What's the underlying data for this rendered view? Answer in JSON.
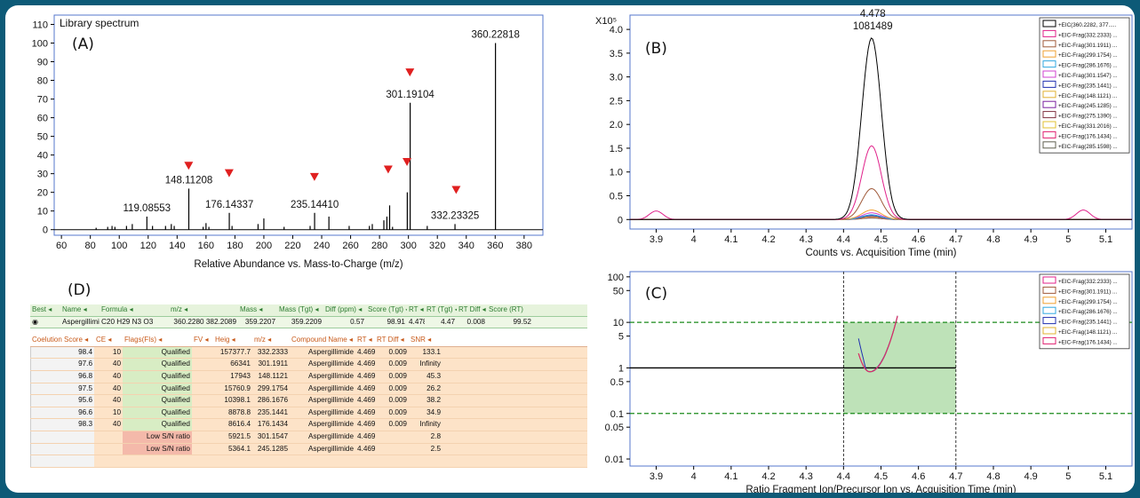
{
  "panels": {
    "A": "(A)",
    "B": "(B)",
    "C": "(C)",
    "D": "(D)"
  },
  "colors": {
    "frame": "#0d5a77",
    "marker": "#e02020",
    "green_box": "#a8d8a0"
  },
  "chart_data": [
    {
      "id": "A",
      "type": "bar",
      "title": "Library spectrum",
      "xlabel": "Relative Abundance vs. Mass-to-Charge (m/z)",
      "ylabel": "",
      "xlim": [
        55,
        393
      ],
      "ylim": [
        -3,
        115
      ],
      "xticks": [
        60,
        80,
        100,
        120,
        140,
        160,
        180,
        200,
        220,
        240,
        260,
        280,
        300,
        320,
        340,
        360,
        380
      ],
      "yticks": [
        0,
        10,
        20,
        30,
        40,
        50,
        60,
        70,
        80,
        90,
        100,
        110
      ],
      "x": [
        84,
        92,
        95,
        97,
        105,
        109,
        119.1,
        123,
        132,
        136,
        138,
        148.1,
        158,
        160,
        162,
        176.1,
        178,
        196,
        200,
        214,
        232,
        235.1,
        245,
        259,
        273,
        275,
        283,
        285.1,
        287,
        289,
        299.2,
        301.2,
        313,
        332.2,
        360.2
      ],
      "values": [
        1,
        1.5,
        2,
        1.5,
        2,
        3,
        7,
        2,
        2,
        3,
        2,
        22,
        1.5,
        3.5,
        1.5,
        9,
        2,
        3,
        6,
        1.5,
        2,
        9,
        7,
        2,
        2,
        3,
        5,
        7,
        13,
        1.5,
        20,
        68,
        2,
        3,
        100
      ],
      "peak_labels": [
        {
          "x": 119.08553,
          "y": 7,
          "text": "119.08553"
        },
        {
          "x": 148.11208,
          "y": 22,
          "text": "148.11208"
        },
        {
          "x": 176.14337,
          "y": 9,
          "text": "176.14337"
        },
        {
          "x": 235.1441,
          "y": 9,
          "text": "235.14410"
        },
        {
          "x": 301.19104,
          "y": 68,
          "text": "301.19104"
        },
        {
          "x": 332.23325,
          "y": 3,
          "text": "332.23325"
        },
        {
          "x": 360.22818,
          "y": 100,
          "text": "360.22818"
        }
      ],
      "markers": [
        {
          "x": 148,
          "y": 34
        },
        {
          "x": 176,
          "y": 30
        },
        {
          "x": 235,
          "y": 28
        },
        {
          "x": 286,
          "y": 32
        },
        {
          "x": 299,
          "y": 36
        },
        {
          "x": 301,
          "y": 84
        },
        {
          "x": 333,
          "y": 21
        }
      ]
    },
    {
      "id": "B",
      "type": "line",
      "ylabel": "X10⁵",
      "xlabel": "Counts vs. Acquisition Time (min)",
      "xlim": [
        3.83,
        5.17
      ],
      "ylim": [
        -0.2,
        4.3
      ],
      "xticks": [
        3.9,
        4,
        4.1,
        4.2,
        4.3,
        4.4,
        4.5,
        4.6,
        4.7,
        4.8,
        4.9,
        5,
        5.1
      ],
      "yticks": [
        0,
        0.5,
        1,
        1.5,
        2,
        2.5,
        3,
        3.5,
        4
      ],
      "annotation": {
        "x": 4.478,
        "y": 3.85,
        "rt": "4.478",
        "area": "1081489"
      },
      "series": [
        {
          "name": "+EIC(360.2282, 377.....",
          "color": "#000000",
          "peak": 3.82
        },
        {
          "name": "+EIC-Frag(332.2333) ...",
          "color": "#e0208a",
          "peak": 1.55,
          "extra": [
            [
              3.9,
              0.18
            ],
            [
              5.04,
              0.2
            ]
          ]
        },
        {
          "name": "+EIC-Frag(301.1911) ...",
          "color": "#a05a3a",
          "peak": 0.65
        },
        {
          "name": "+EIC-Frag(299.1754) ...",
          "color": "#f0a030",
          "peak": 0.2
        },
        {
          "name": "+EIC-Frag(286.1676) ...",
          "color": "#30a8e0",
          "peak": 0.1
        },
        {
          "name": "+EIC-Frag(301.1547) ...",
          "color": "#d040d0",
          "peak": 0.14
        },
        {
          "name": "+EIC-Frag(235.1441) ...",
          "color": "#2030b0",
          "peak": 0.08
        },
        {
          "name": "+EIC-Frag(148.1121) ...",
          "color": "#e0b030",
          "peak": 0.06
        },
        {
          "name": "+EIC-Frag(245.1285) ...",
          "color": "#7a20a0",
          "peak": 0.05
        },
        {
          "name": "+EIC-Frag(275.1390) ...",
          "color": "#803040",
          "peak": 0.05
        },
        {
          "name": "+EIC-Frag(331.2016) ...",
          "color": "#e0c030",
          "peak": 0.04
        },
        {
          "name": "+EIC-Frag(176.1434) ...",
          "color": "#e02070",
          "peak": 0.04
        },
        {
          "name": "+EIC-Frag(285.1598) ...",
          "color": "#606050",
          "peak": 0.03
        }
      ]
    },
    {
      "id": "C",
      "type": "line",
      "yscale": "log",
      "xlabel": "Ratio Fragment Ion/Precursor Ion vs. Acquisition Time (min)",
      "xlim": [
        3.83,
        5.17
      ],
      "ylim": [
        0.007,
        130
      ],
      "xticks": [
        3.9,
        4,
        4.1,
        4.2,
        4.3,
        4.4,
        4.5,
        4.6,
        4.7,
        4.8,
        4.9,
        5,
        5.1
      ],
      "yticks": [
        0.01,
        0.05,
        0.1,
        0.5,
        1,
        5,
        10,
        50,
        100
      ],
      "ytick_labels": [
        "0.01",
        "0.05",
        "0.1",
        "0.5",
        "1",
        "5",
        "10",
        "50",
        "100"
      ],
      "window": {
        "x0": 4.4,
        "x1": 4.7,
        "y0": 0.1,
        "y1": 10
      },
      "series": [
        {
          "name": "+EIC-Frag(332.2333) ...",
          "color": "#e0208a"
        },
        {
          "name": "+EIC-Frag(301.1911) ...",
          "color": "#a05a3a"
        },
        {
          "name": "+EIC-Frag(299.1754) ...",
          "color": "#f0a030"
        },
        {
          "name": "+EIC-Frag(286.1676) ...",
          "color": "#30a8e0"
        },
        {
          "name": "+EIC-Frag(235.1441) ...",
          "color": "#2030b0"
        },
        {
          "name": "+EIC-Frag(148.1121) ...",
          "color": "#e0b030"
        },
        {
          "name": "+EIC-Frag(176.1434) ...",
          "color": "#e02070"
        }
      ]
    }
  ],
  "tableD": {
    "header1": [
      "Best",
      "Name",
      "Formula",
      "m/z",
      "Mass",
      "Mass (Tgt)",
      "Diff (ppm)",
      "Score (Tgt)",
      "RT",
      "RT (Tgt)",
      "RT Diff",
      "Score (RT)"
    ],
    "best_row": [
      "Aspergillimide",
      "C20 H29 N3 O3",
      "360.2280 382.2089",
      "359.2207",
      "359.2209",
      "0.57",
      "98.91",
      "4.478",
      "4.47",
      "0.008",
      "99.52"
    ],
    "header2": [
      "Coelution Score",
      "CE",
      "Flags(FIs)",
      "FV",
      "Heig",
      "m/z",
      "Compound Name",
      "RT",
      "RT Diff",
      "SNR"
    ],
    "rows": [
      [
        "98.4",
        "10",
        "Qualified",
        "",
        "157377.7",
        "332.2333",
        "Aspergillimide",
        "4.469",
        "0.009",
        "133.1"
      ],
      [
        "97.6",
        "40",
        "Qualified",
        "",
        "66341",
        "301.1911",
        "Aspergillimide",
        "4.469",
        "0.009",
        "Infinity"
      ],
      [
        "96.8",
        "40",
        "Qualified",
        "",
        "17943",
        "148.1121",
        "Aspergillimide",
        "4.469",
        "0.009",
        "45.3"
      ],
      [
        "97.5",
        "40",
        "Qualified",
        "",
        "15760.9",
        "299.1754",
        "Aspergillimide",
        "4.469",
        "0.009",
        "26.2"
      ],
      [
        "95.6",
        "40",
        "Qualified",
        "",
        "10398.1",
        "286.1676",
        "Aspergillimide",
        "4.469",
        "0.009",
        "38.2"
      ],
      [
        "96.6",
        "10",
        "Qualified",
        "",
        "8878.8",
        "235.1441",
        "Aspergillimide",
        "4.469",
        "0.009",
        "34.9"
      ],
      [
        "98.3",
        "40",
        "Qualified",
        "",
        "8616.4",
        "176.1434",
        "Aspergillimide",
        "4.469",
        "0.009",
        "Infinity"
      ],
      [
        "",
        "",
        "Low S/N ratio",
        "",
        "5921.5",
        "301.1547",
        "Aspergillimide",
        "4.469",
        "",
        "2.8"
      ],
      [
        "",
        "",
        "Low S/N ratio",
        "",
        "5364.1",
        "245.1285",
        "Aspergillimide",
        "4.469",
        "",
        "2.5"
      ],
      [
        "",
        "",
        "",
        "",
        "",
        "",
        "",
        "",
        "",
        ""
      ]
    ]
  }
}
